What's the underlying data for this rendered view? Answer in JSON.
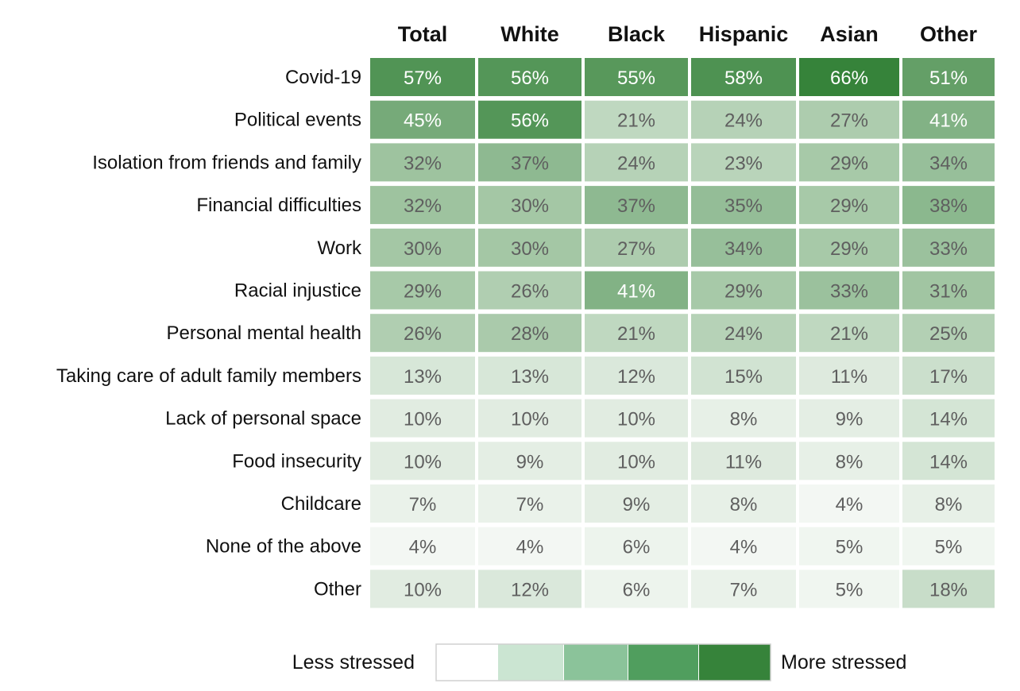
{
  "chart_data": {
    "type": "heatmap",
    "columns": [
      "Total",
      "White",
      "Black",
      "Hispanic",
      "Asian",
      "Other"
    ],
    "rows": [
      "Covid-19",
      "Political events",
      "Isolation from friends and family",
      "Financial difficulties",
      "Work",
      "Racial injustice",
      "Personal mental health",
      "Taking care of adult family members",
      "Lack of personal space",
      "Food insecurity",
      "Childcare",
      "None of the above",
      "Other"
    ],
    "values": [
      [
        57,
        56,
        55,
        58,
        66,
        51
      ],
      [
        45,
        56,
        21,
        24,
        27,
        41
      ],
      [
        32,
        37,
        24,
        23,
        29,
        34
      ],
      [
        32,
        30,
        37,
        35,
        29,
        38
      ],
      [
        30,
        30,
        27,
        34,
        29,
        33
      ],
      [
        29,
        26,
        41,
        29,
        33,
        31
      ],
      [
        26,
        28,
        21,
        24,
        21,
        25
      ],
      [
        13,
        13,
        12,
        15,
        11,
        17
      ],
      [
        10,
        10,
        10,
        8,
        9,
        14
      ],
      [
        10,
        9,
        10,
        11,
        8,
        14
      ],
      [
        7,
        7,
        9,
        8,
        4,
        8
      ],
      [
        4,
        4,
        6,
        4,
        5,
        5
      ],
      [
        10,
        12,
        6,
        7,
        5,
        18
      ]
    ],
    "value_suffix": "%",
    "color_low": "#ffffff",
    "color_high": "#36833a",
    "value_domain": [
      0,
      66
    ],
    "legend": {
      "low_label": "Less stressed",
      "high_label": "More stressed",
      "colors": [
        "#ffffff",
        "#cbe5d2",
        "#8bc39a",
        "#509e5e",
        "#36833a"
      ]
    }
  }
}
